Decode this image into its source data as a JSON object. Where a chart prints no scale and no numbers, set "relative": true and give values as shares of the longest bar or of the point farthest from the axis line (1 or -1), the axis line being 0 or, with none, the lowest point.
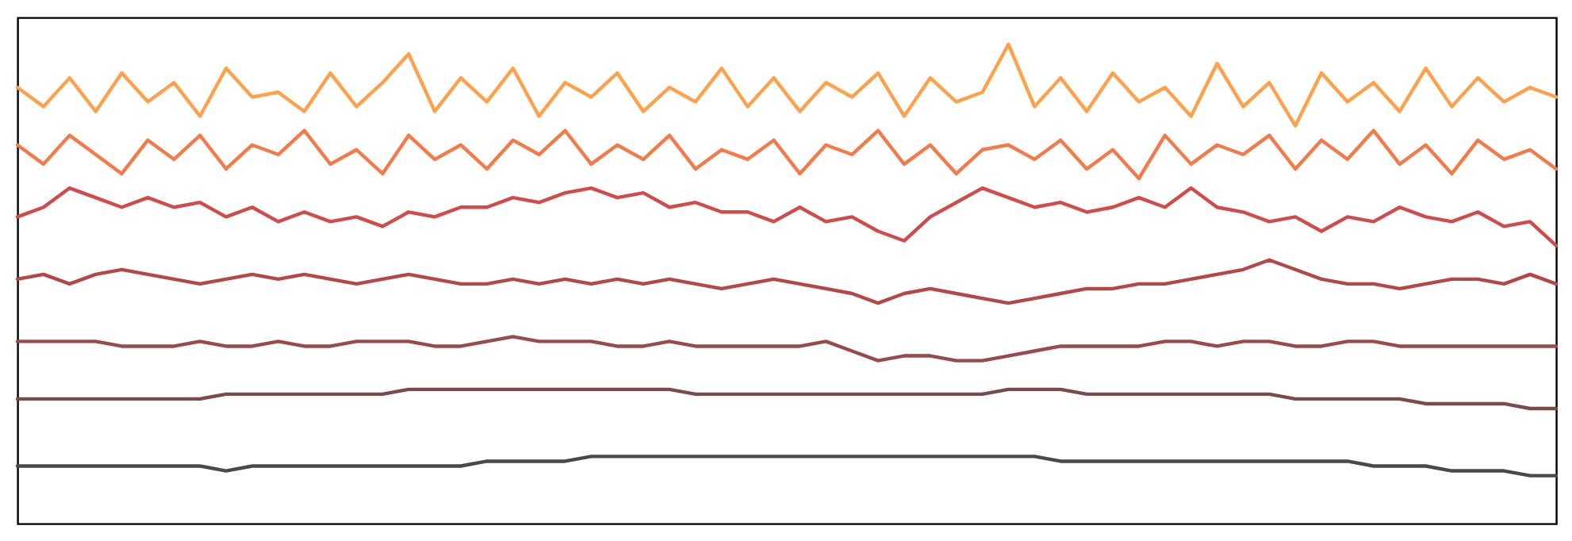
{
  "chart_data": {
    "type": "line",
    "relative": true,
    "categories": [
      null,
      null,
      null,
      null,
      null,
      null,
      null,
      null,
      null,
      null,
      null,
      null,
      null,
      null,
      null,
      null,
      null,
      null,
      null,
      null,
      null,
      null,
      null,
      null,
      null,
      null,
      null,
      null,
      null,
      null,
      null,
      null,
      null,
      null,
      null,
      null,
      null,
      null,
      null,
      null,
      null,
      null,
      null,
      null,
      null,
      null,
      null,
      null,
      null,
      null,
      null,
      null,
      null,
      null,
      null,
      null,
      null,
      null,
      null,
      null
    ],
    "series": [
      {
        "color": "#ffa14a",
        "values": [
          0.91,
          0.87,
          0.93,
          0.86,
          0.94,
          0.88,
          0.92,
          0.85,
          0.95,
          0.89,
          0.9,
          0.86,
          0.94,
          0.87,
          0.92,
          0.98,
          0.86,
          0.93,
          0.88,
          0.95,
          0.85,
          0.92,
          0.89,
          0.94,
          0.86,
          0.91,
          0.88,
          0.95,
          0.87,
          0.93,
          0.86,
          0.92,
          0.89,
          0.94,
          0.85,
          0.93,
          0.88,
          0.9,
          1.0,
          0.87,
          0.93,
          0.86,
          0.94,
          0.88,
          0.91,
          0.85,
          0.96,
          0.87,
          0.92,
          0.83,
          0.94,
          0.88,
          0.92,
          0.86,
          0.95,
          0.87,
          0.93,
          0.88,
          0.91,
          0.89
        ]
      },
      {
        "color": "#f47a4a",
        "values": [
          0.79,
          0.75,
          0.81,
          0.77,
          0.73,
          0.8,
          0.76,
          0.81,
          0.74,
          0.79,
          0.77,
          0.82,
          0.75,
          0.78,
          0.73,
          0.81,
          0.76,
          0.79,
          0.74,
          0.8,
          0.77,
          0.82,
          0.75,
          0.79,
          0.76,
          0.81,
          0.74,
          0.78,
          0.76,
          0.8,
          0.73,
          0.79,
          0.77,
          0.82,
          0.75,
          0.79,
          0.73,
          0.78,
          0.79,
          0.76,
          0.8,
          0.74,
          0.78,
          0.72,
          0.81,
          0.75,
          0.79,
          0.77,
          0.81,
          0.74,
          0.8,
          0.76,
          0.82,
          0.75,
          0.79,
          0.73,
          0.8,
          0.76,
          0.78,
          0.74
        ]
      },
      {
        "color": "#d24b4b",
        "values": [
          0.64,
          0.66,
          0.7,
          0.68,
          0.66,
          0.68,
          0.66,
          0.67,
          0.64,
          0.66,
          0.63,
          0.65,
          0.63,
          0.64,
          0.62,
          0.65,
          0.64,
          0.66,
          0.66,
          0.68,
          0.67,
          0.69,
          0.7,
          0.68,
          0.69,
          0.66,
          0.67,
          0.65,
          0.65,
          0.63,
          0.66,
          0.63,
          0.64,
          0.61,
          0.59,
          0.64,
          0.67,
          0.7,
          0.68,
          0.66,
          0.67,
          0.65,
          0.66,
          0.68,
          0.66,
          0.7,
          0.66,
          0.65,
          0.63,
          0.64,
          0.61,
          0.64,
          0.63,
          0.66,
          0.64,
          0.63,
          0.65,
          0.62,
          0.63,
          0.58
        ]
      },
      {
        "color": "#b44848",
        "values": [
          0.51,
          0.52,
          0.5,
          0.52,
          0.53,
          0.52,
          0.51,
          0.5,
          0.51,
          0.52,
          0.51,
          0.52,
          0.51,
          0.5,
          0.51,
          0.52,
          0.51,
          0.5,
          0.5,
          0.51,
          0.5,
          0.51,
          0.5,
          0.51,
          0.5,
          0.51,
          0.5,
          0.49,
          0.5,
          0.51,
          0.5,
          0.49,
          0.48,
          0.46,
          0.48,
          0.49,
          0.48,
          0.47,
          0.46,
          0.47,
          0.48,
          0.49,
          0.49,
          0.5,
          0.5,
          0.51,
          0.52,
          0.53,
          0.55,
          0.53,
          0.51,
          0.5,
          0.5,
          0.49,
          0.5,
          0.51,
          0.51,
          0.5,
          0.52,
          0.5
        ]
      },
      {
        "color": "#9a4a4a",
        "values": [
          0.38,
          0.38,
          0.38,
          0.38,
          0.37,
          0.37,
          0.37,
          0.38,
          0.37,
          0.37,
          0.38,
          0.37,
          0.37,
          0.38,
          0.38,
          0.38,
          0.37,
          0.37,
          0.38,
          0.39,
          0.38,
          0.38,
          0.38,
          0.37,
          0.37,
          0.38,
          0.37,
          0.37,
          0.37,
          0.37,
          0.37,
          0.38,
          0.36,
          0.34,
          0.35,
          0.35,
          0.34,
          0.34,
          0.35,
          0.36,
          0.37,
          0.37,
          0.37,
          0.37,
          0.38,
          0.38,
          0.37,
          0.38,
          0.38,
          0.37,
          0.37,
          0.38,
          0.38,
          0.37,
          0.37,
          0.37,
          0.37,
          0.37,
          0.37,
          0.37
        ]
      },
      {
        "color": "#7d4a4a",
        "values": [
          0.26,
          0.26,
          0.26,
          0.26,
          0.26,
          0.26,
          0.26,
          0.26,
          0.27,
          0.27,
          0.27,
          0.27,
          0.27,
          0.27,
          0.27,
          0.28,
          0.28,
          0.28,
          0.28,
          0.28,
          0.28,
          0.28,
          0.28,
          0.28,
          0.28,
          0.28,
          0.27,
          0.27,
          0.27,
          0.27,
          0.27,
          0.27,
          0.27,
          0.27,
          0.27,
          0.27,
          0.27,
          0.27,
          0.28,
          0.28,
          0.28,
          0.27,
          0.27,
          0.27,
          0.27,
          0.27,
          0.27,
          0.27,
          0.27,
          0.26,
          0.26,
          0.26,
          0.26,
          0.26,
          0.25,
          0.25,
          0.25,
          0.25,
          0.24,
          0.24
        ]
      },
      {
        "color": "#4a4a4a",
        "values": [
          0.12,
          0.12,
          0.12,
          0.12,
          0.12,
          0.12,
          0.12,
          0.12,
          0.11,
          0.12,
          0.12,
          0.12,
          0.12,
          0.12,
          0.12,
          0.12,
          0.12,
          0.12,
          0.13,
          0.13,
          0.13,
          0.13,
          0.14,
          0.14,
          0.14,
          0.14,
          0.14,
          0.14,
          0.14,
          0.14,
          0.14,
          0.14,
          0.14,
          0.14,
          0.14,
          0.14,
          0.14,
          0.14,
          0.14,
          0.14,
          0.13,
          0.13,
          0.13,
          0.13,
          0.13,
          0.13,
          0.13,
          0.13,
          0.13,
          0.13,
          0.13,
          0.13,
          0.12,
          0.12,
          0.12,
          0.11,
          0.11,
          0.11,
          0.1,
          0.1
        ]
      }
    ]
  }
}
